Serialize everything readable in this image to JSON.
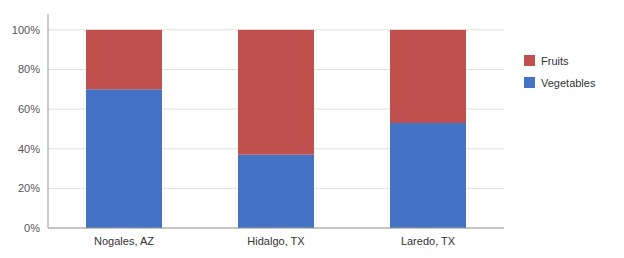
{
  "chart_data": {
    "type": "bar",
    "stacked": true,
    "grid": true,
    "legend": "right",
    "categories": [
      "Nogales, AZ",
      "Hidalgo, TX",
      "Laredo, TX"
    ],
    "series": [
      {
        "name": "Vegetables",
        "color": "#4472C4",
        "values": [
          0.7,
          0.37,
          0.53
        ]
      },
      {
        "name": "Fruits",
        "color": "#C0504D",
        "values": [
          0.3,
          0.63,
          0.47
        ]
      }
    ],
    "ylim": [
      0,
      1.08
    ],
    "yticks": [
      {
        "value": 0.0,
        "label": "0%"
      },
      {
        "value": 0.2,
        "label": "20%"
      },
      {
        "value": 0.4,
        "label": "40%"
      },
      {
        "value": 0.6,
        "label": "60%"
      },
      {
        "value": 0.8,
        "label": "80%"
      },
      {
        "value": 1.0,
        "label": "100%"
      }
    ]
  }
}
